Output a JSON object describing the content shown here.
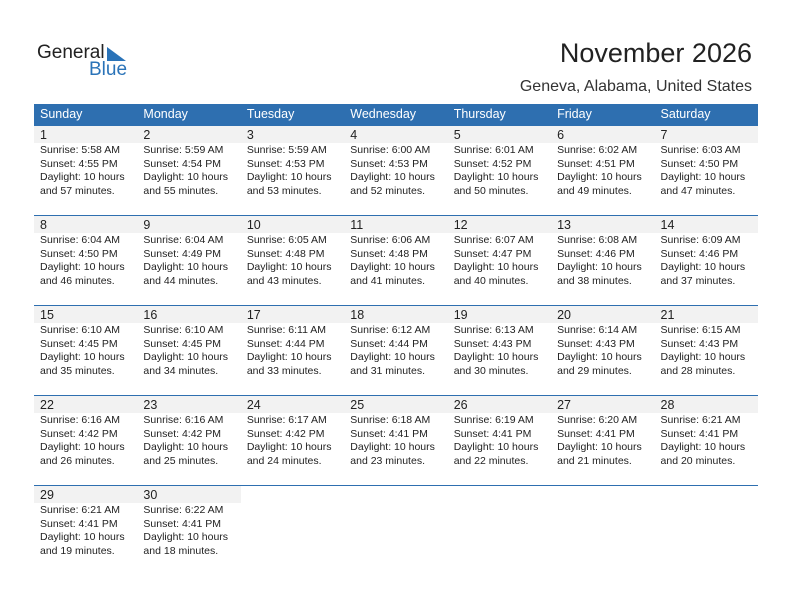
{
  "logo": {
    "general": "General",
    "blue": "Blue"
  },
  "title": "November 2026",
  "location": "Geneva, Alabama, United States",
  "weekdays": [
    "Sunday",
    "Monday",
    "Tuesday",
    "Wednesday",
    "Thursday",
    "Friday",
    "Saturday"
  ],
  "days": [
    {
      "d": "1",
      "sunrise": "Sunrise: 5:58 AM",
      "sunset": "Sunset: 4:55 PM",
      "daylight1": "Daylight: 10 hours",
      "daylight2": "and 57 minutes."
    },
    {
      "d": "2",
      "sunrise": "Sunrise: 5:59 AM",
      "sunset": "Sunset: 4:54 PM",
      "daylight1": "Daylight: 10 hours",
      "daylight2": "and 55 minutes."
    },
    {
      "d": "3",
      "sunrise": "Sunrise: 5:59 AM",
      "sunset": "Sunset: 4:53 PM",
      "daylight1": "Daylight: 10 hours",
      "daylight2": "and 53 minutes."
    },
    {
      "d": "4",
      "sunrise": "Sunrise: 6:00 AM",
      "sunset": "Sunset: 4:53 PM",
      "daylight1": "Daylight: 10 hours",
      "daylight2": "and 52 minutes."
    },
    {
      "d": "5",
      "sunrise": "Sunrise: 6:01 AM",
      "sunset": "Sunset: 4:52 PM",
      "daylight1": "Daylight: 10 hours",
      "daylight2": "and 50 minutes."
    },
    {
      "d": "6",
      "sunrise": "Sunrise: 6:02 AM",
      "sunset": "Sunset: 4:51 PM",
      "daylight1": "Daylight: 10 hours",
      "daylight2": "and 49 minutes."
    },
    {
      "d": "7",
      "sunrise": "Sunrise: 6:03 AM",
      "sunset": "Sunset: 4:50 PM",
      "daylight1": "Daylight: 10 hours",
      "daylight2": "and 47 minutes."
    },
    {
      "d": "8",
      "sunrise": "Sunrise: 6:04 AM",
      "sunset": "Sunset: 4:50 PM",
      "daylight1": "Daylight: 10 hours",
      "daylight2": "and 46 minutes."
    },
    {
      "d": "9",
      "sunrise": "Sunrise: 6:04 AM",
      "sunset": "Sunset: 4:49 PM",
      "daylight1": "Daylight: 10 hours",
      "daylight2": "and 44 minutes."
    },
    {
      "d": "10",
      "sunrise": "Sunrise: 6:05 AM",
      "sunset": "Sunset: 4:48 PM",
      "daylight1": "Daylight: 10 hours",
      "daylight2": "and 43 minutes."
    },
    {
      "d": "11",
      "sunrise": "Sunrise: 6:06 AM",
      "sunset": "Sunset: 4:48 PM",
      "daylight1": "Daylight: 10 hours",
      "daylight2": "and 41 minutes."
    },
    {
      "d": "12",
      "sunrise": "Sunrise: 6:07 AM",
      "sunset": "Sunset: 4:47 PM",
      "daylight1": "Daylight: 10 hours",
      "daylight2": "and 40 minutes."
    },
    {
      "d": "13",
      "sunrise": "Sunrise: 6:08 AM",
      "sunset": "Sunset: 4:46 PM",
      "daylight1": "Daylight: 10 hours",
      "daylight2": "and 38 minutes."
    },
    {
      "d": "14",
      "sunrise": "Sunrise: 6:09 AM",
      "sunset": "Sunset: 4:46 PM",
      "daylight1": "Daylight: 10 hours",
      "daylight2": "and 37 minutes."
    },
    {
      "d": "15",
      "sunrise": "Sunrise: 6:10 AM",
      "sunset": "Sunset: 4:45 PM",
      "daylight1": "Daylight: 10 hours",
      "daylight2": "and 35 minutes."
    },
    {
      "d": "16",
      "sunrise": "Sunrise: 6:10 AM",
      "sunset": "Sunset: 4:45 PM",
      "daylight1": "Daylight: 10 hours",
      "daylight2": "and 34 minutes."
    },
    {
      "d": "17",
      "sunrise": "Sunrise: 6:11 AM",
      "sunset": "Sunset: 4:44 PM",
      "daylight1": "Daylight: 10 hours",
      "daylight2": "and 33 minutes."
    },
    {
      "d": "18",
      "sunrise": "Sunrise: 6:12 AM",
      "sunset": "Sunset: 4:44 PM",
      "daylight1": "Daylight: 10 hours",
      "daylight2": "and 31 minutes."
    },
    {
      "d": "19",
      "sunrise": "Sunrise: 6:13 AM",
      "sunset": "Sunset: 4:43 PM",
      "daylight1": "Daylight: 10 hours",
      "daylight2": "and 30 minutes."
    },
    {
      "d": "20",
      "sunrise": "Sunrise: 6:14 AM",
      "sunset": "Sunset: 4:43 PM",
      "daylight1": "Daylight: 10 hours",
      "daylight2": "and 29 minutes."
    },
    {
      "d": "21",
      "sunrise": "Sunrise: 6:15 AM",
      "sunset": "Sunset: 4:43 PM",
      "daylight1": "Daylight: 10 hours",
      "daylight2": "and 28 minutes."
    },
    {
      "d": "22",
      "sunrise": "Sunrise: 6:16 AM",
      "sunset": "Sunset: 4:42 PM",
      "daylight1": "Daylight: 10 hours",
      "daylight2": "and 26 minutes."
    },
    {
      "d": "23",
      "sunrise": "Sunrise: 6:16 AM",
      "sunset": "Sunset: 4:42 PM",
      "daylight1": "Daylight: 10 hours",
      "daylight2": "and 25 minutes."
    },
    {
      "d": "24",
      "sunrise": "Sunrise: 6:17 AM",
      "sunset": "Sunset: 4:42 PM",
      "daylight1": "Daylight: 10 hours",
      "daylight2": "and 24 minutes."
    },
    {
      "d": "25",
      "sunrise": "Sunrise: 6:18 AM",
      "sunset": "Sunset: 4:41 PM",
      "daylight1": "Daylight: 10 hours",
      "daylight2": "and 23 minutes."
    },
    {
      "d": "26",
      "sunrise": "Sunrise: 6:19 AM",
      "sunset": "Sunset: 4:41 PM",
      "daylight1": "Daylight: 10 hours",
      "daylight2": "and 22 minutes."
    },
    {
      "d": "27",
      "sunrise": "Sunrise: 6:20 AM",
      "sunset": "Sunset: 4:41 PM",
      "daylight1": "Daylight: 10 hours",
      "daylight2": "and 21 minutes."
    },
    {
      "d": "28",
      "sunrise": "Sunrise: 6:21 AM",
      "sunset": "Sunset: 4:41 PM",
      "daylight1": "Daylight: 10 hours",
      "daylight2": "and 20 minutes."
    },
    {
      "d": "29",
      "sunrise": "Sunrise: 6:21 AM",
      "sunset": "Sunset: 4:41 PM",
      "daylight1": "Daylight: 10 hours",
      "daylight2": "and 19 minutes."
    },
    {
      "d": "30",
      "sunrise": "Sunrise: 6:22 AM",
      "sunset": "Sunset: 4:41 PM",
      "daylight1": "Daylight: 10 hours",
      "daylight2": "and 18 minutes."
    }
  ],
  "colors": {
    "accent": "#2e6fb0",
    "date_band": "#f2f2f2"
  }
}
